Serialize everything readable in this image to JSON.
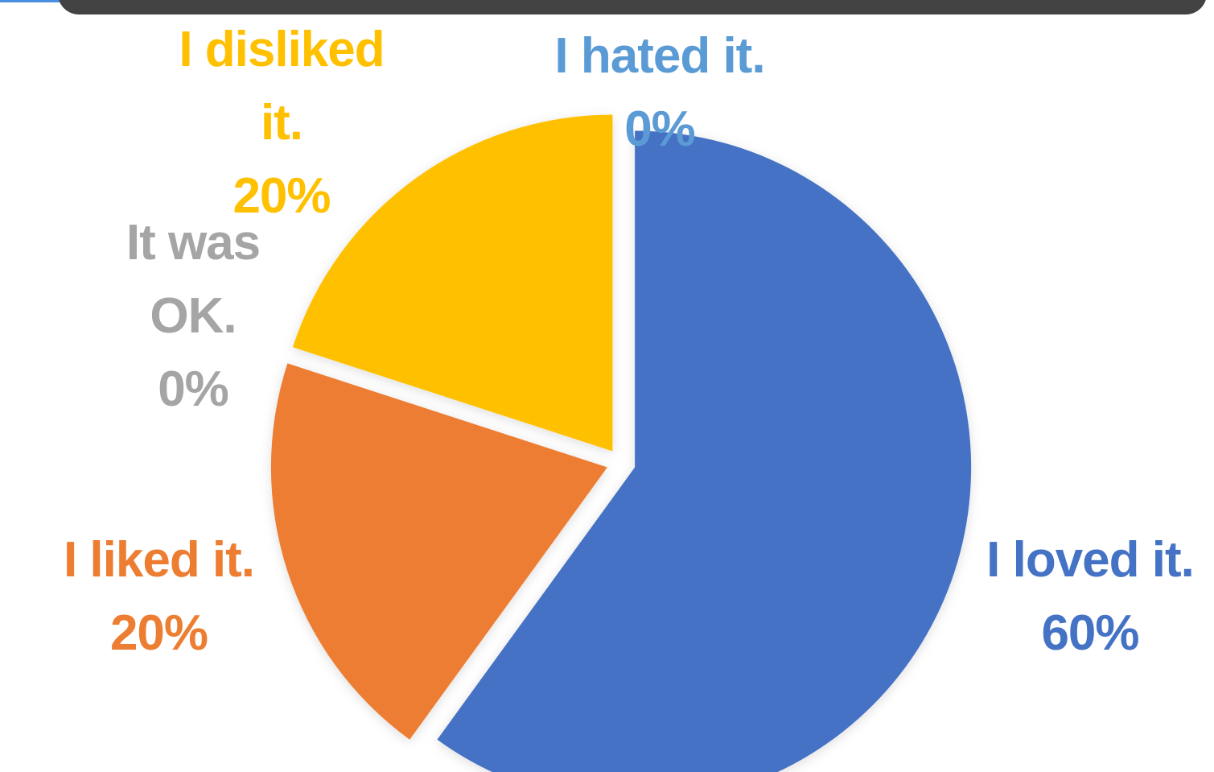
{
  "chart_data": {
    "type": "pie",
    "start": "top, clockwise",
    "exploded": true,
    "slices": [
      {
        "label": "I loved it.",
        "value": 60,
        "pct_text": "60%",
        "color": "#4472C4"
      },
      {
        "label": "I liked it.",
        "value": 20,
        "pct_text": "20%",
        "color": "#ED7D31"
      },
      {
        "label": "It was OK.",
        "value": 0,
        "pct_text": "0%",
        "color": "#A5A5A5"
      },
      {
        "label": "I disliked it.",
        "value": 20,
        "pct_text": "20%",
        "color": "#FFC000"
      },
      {
        "label": "I hated it.",
        "value": 0,
        "pct_text": "0%",
        "color": "#5B9BD5"
      }
    ]
  },
  "labels": {
    "loved": {
      "line1": "I loved it.",
      "line2": "60%"
    },
    "liked": {
      "line1": "I liked it.",
      "line2": "20%"
    },
    "ok": {
      "line1": "It was",
      "line2": "OK.",
      "line3": "0%"
    },
    "disliked": {
      "line1": "I disliked",
      "line2": "it.",
      "line3": "20%"
    },
    "hated": {
      "line1": "I hated it.",
      "line2": "0%"
    }
  },
  "colors": {
    "top_bar": "#434343",
    "accent": "#4A8FE0",
    "shadow": "#E4E4E4"
  }
}
